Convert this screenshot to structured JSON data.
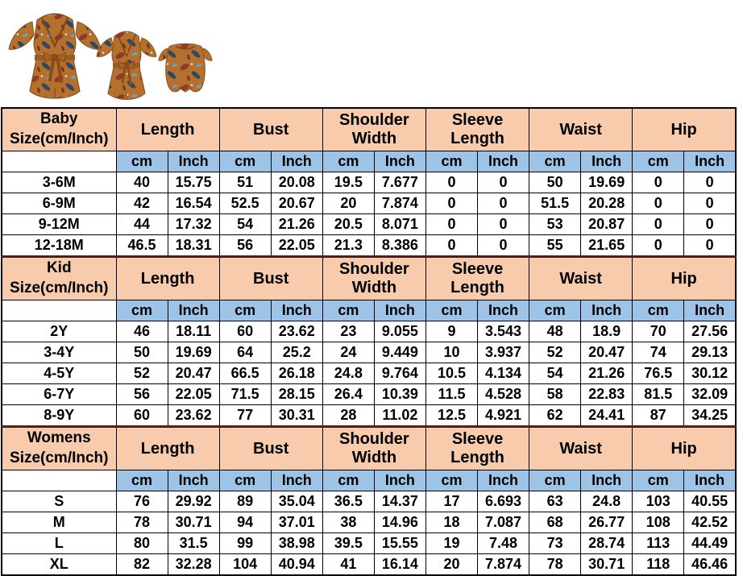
{
  "page": {
    "background": "#ffffff"
  },
  "product_photos": {
    "description": "three matching mommy-and-me floral rompers on white background",
    "items": [
      {
        "name": "mom-romper"
      },
      {
        "name": "kid-romper"
      },
      {
        "name": "baby-romper"
      }
    ],
    "colors": {
      "fabric_base": "#b5702d",
      "fabric_dark": "#8a5420",
      "floral_red": "#8f3b2a",
      "floral_navy": "#2e4a63",
      "floral_teal": "#6fa0b5",
      "floral_light": "#d9e4ea",
      "sash": "#9a5a20"
    }
  },
  "size_chart": {
    "colors": {
      "header_bg": "#F8CBAD",
      "unit_bg": "#9DC3E6",
      "cell_bg": "#ffffff",
      "border": "#000000",
      "section_divider": "#4e201b"
    },
    "measure_columns": [
      "Length",
      "Bust",
      "Shoulder Width",
      "Sleeve Length",
      "Waist",
      "Hip"
    ],
    "unit_labels": [
      "cm",
      "Inch"
    ],
    "sections": [
      {
        "title_line1": "Baby",
        "title_line2": "Size(cm/Inch)",
        "rows": [
          {
            "size": "3-6M",
            "values": [
              "40",
              "15.75",
              "51",
              "20.08",
              "19.5",
              "7.677",
              "0",
              "0",
              "50",
              "19.69",
              "0",
              "0"
            ]
          },
          {
            "size": "6-9M",
            "values": [
              "42",
              "16.54",
              "52.5",
              "20.67",
              "20",
              "7.874",
              "0",
              "0",
              "51.5",
              "20.28",
              "0",
              "0"
            ]
          },
          {
            "size": "9-12M",
            "values": [
              "44",
              "17.32",
              "54",
              "21.26",
              "20.5",
              "8.071",
              "0",
              "0",
              "53",
              "20.87",
              "0",
              "0"
            ]
          },
          {
            "size": "12-18M",
            "values": [
              "46.5",
              "18.31",
              "56",
              "22.05",
              "21.3",
              "8.386",
              "0",
              "0",
              "55",
              "21.65",
              "0",
              "0"
            ]
          }
        ]
      },
      {
        "title_line1": "Kid",
        "title_line2": "Size(cm/Inch)",
        "rows": [
          {
            "size": "2Y",
            "values": [
              "46",
              "18.11",
              "60",
              "23.62",
              "23",
              "9.055",
              "9",
              "3.543",
              "48",
              "18.9",
              "70",
              "27.56"
            ]
          },
          {
            "size": "3-4Y",
            "values": [
              "50",
              "19.69",
              "64",
              "25.2",
              "24",
              "9.449",
              "10",
              "3.937",
              "52",
              "20.47",
              "74",
              "29.13"
            ]
          },
          {
            "size": "4-5Y",
            "values": [
              "52",
              "20.47",
              "66.5",
              "26.18",
              "24.8",
              "9.764",
              "10.5",
              "4.134",
              "54",
              "21.26",
              "76.5",
              "30.12"
            ]
          },
          {
            "size": "6-7Y",
            "values": [
              "56",
              "22.05",
              "71.5",
              "28.15",
              "26.4",
              "10.39",
              "11.5",
              "4.528",
              "58",
              "22.83",
              "81.5",
              "32.09"
            ]
          },
          {
            "size": "8-9Y",
            "values": [
              "60",
              "23.62",
              "77",
              "30.31",
              "28",
              "11.02",
              "12.5",
              "4.921",
              "62",
              "24.41",
              "87",
              "34.25"
            ]
          }
        ]
      },
      {
        "title_line1": "Womens",
        "title_line2": "Size(cm/Inch)",
        "rows": [
          {
            "size": "S",
            "values": [
              "76",
              "29.92",
              "89",
              "35.04",
              "36.5",
              "14.37",
              "17",
              "6.693",
              "63",
              "24.8",
              "103",
              "40.55"
            ]
          },
          {
            "size": "M",
            "values": [
              "78",
              "30.71",
              "94",
              "37.01",
              "38",
              "14.96",
              "18",
              "7.087",
              "68",
              "26.77",
              "108",
              "42.52"
            ]
          },
          {
            "size": "L",
            "values": [
              "80",
              "31.5",
              "99",
              "38.98",
              "39.5",
              "15.55",
              "19",
              "7.48",
              "73",
              "28.74",
              "113",
              "44.49"
            ]
          },
          {
            "size": "XL",
            "values": [
              "82",
              "32.28",
              "104",
              "40.94",
              "41",
              "16.14",
              "20",
              "7.874",
              "78",
              "30.71",
              "118",
              "46.46"
            ]
          }
        ]
      }
    ],
    "layout": {
      "size_col_width": 133,
      "value_col_width": 60,
      "header_row_height": 52,
      "data_row_height": 25
    }
  }
}
